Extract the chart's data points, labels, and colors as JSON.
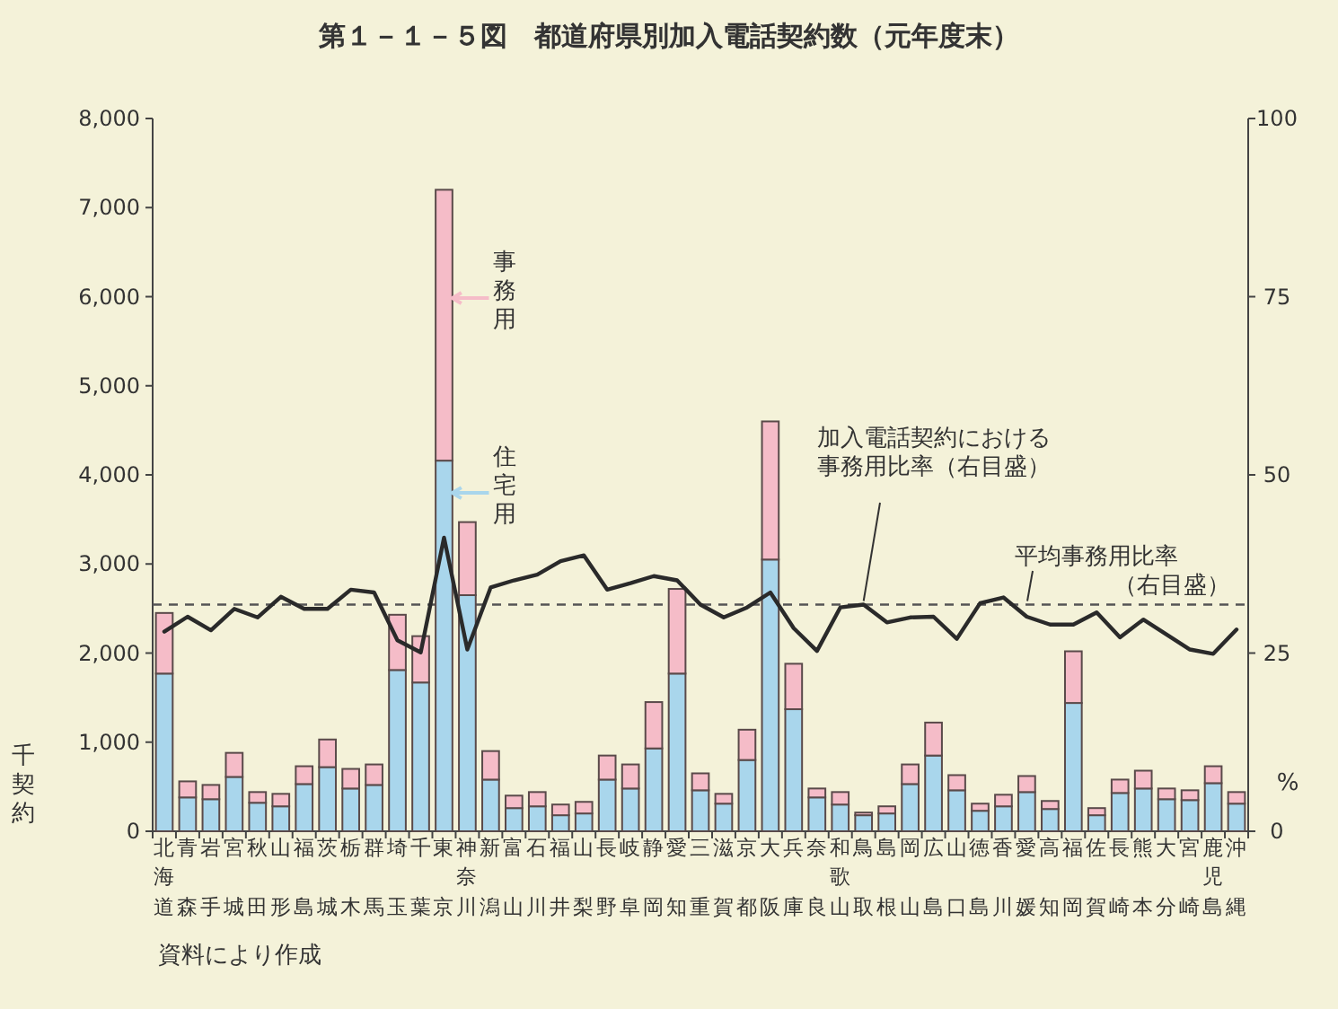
{
  "chart_data": {
    "type": "bar",
    "stacked": true,
    "title": "第１－１－５図　都道府県別加入電話契約数（元年度末）",
    "ylabel": "千契約",
    "y2label": "%",
    "categories": [
      "北海道",
      "青森",
      "岩手",
      "宮城",
      "秋田",
      "山形",
      "福島",
      "茨城",
      "栃木",
      "群馬",
      "埼玉",
      "千葉",
      "東京",
      "神奈川",
      "新潟",
      "富山",
      "石川",
      "福井",
      "山梨",
      "長野",
      "岐阜",
      "静岡",
      "愛知",
      "三重",
      "滋賀",
      "京都",
      "大阪",
      "兵庫",
      "奈良",
      "和歌山",
      "鳥取",
      "島根",
      "岡山",
      "広島",
      "山口",
      "徳島",
      "香川",
      "愛媛",
      "高知",
      "福岡",
      "佐賀",
      "長崎",
      "熊本",
      "大分",
      "宮崎",
      "鹿児島",
      "沖縄"
    ],
    "series": [
      {
        "name": "住宅用",
        "color": "#a9d6ec",
        "values": [
          1770,
          380,
          360,
          610,
          320,
          280,
          530,
          720,
          480,
          520,
          1810,
          1670,
          4160,
          2650,
          580,
          260,
          280,
          180,
          200,
          580,
          480,
          930,
          1770,
          460,
          310,
          800,
          3050,
          1370,
          380,
          300,
          180,
          200,
          530,
          850,
          460,
          230,
          280,
          440,
          250,
          1440,
          180,
          430,
          480,
          360,
          350,
          540,
          310
        ]
      },
      {
        "name": "事務用",
        "color": "#f5bcc8",
        "values": [
          680,
          180,
          160,
          270,
          120,
          140,
          200,
          310,
          220,
          230,
          620,
          520,
          3040,
          820,
          320,
          140,
          160,
          120,
          130,
          270,
          270,
          520,
          950,
          190,
          110,
          340,
          1550,
          510,
          100,
          140,
          30,
          80,
          220,
          370,
          170,
          80,
          130,
          180,
          90,
          580,
          80,
          150,
          200,
          120,
          110,
          190,
          130
        ]
      },
      {
        "name": "加入電話契約における事務用比率（右目盛）",
        "type": "line",
        "axis": "y2",
        "color": "#2a2a2a",
        "values": [
          28.0,
          30.1,
          28.2,
          31.2,
          30.0,
          32.9,
          31.2,
          31.2,
          33.9,
          33.5,
          26.8,
          25.1,
          41.2,
          25.5,
          34.2,
          35.2,
          36.0,
          37.9,
          38.7,
          33.9,
          34.8,
          35.8,
          35.2,
          31.8,
          30.0,
          31.4,
          33.5,
          28.5,
          25.3,
          31.4,
          31.8,
          29.3,
          30.0,
          30.1,
          27.0,
          32.0,
          32.8,
          30.1,
          29.0,
          29.0,
          30.7,
          27.2,
          29.7,
          27.6,
          25.5,
          24.9,
          28.3
        ]
      }
    ],
    "ylim": [
      0,
      8000
    ],
    "yticks": [
      0,
      {
        "value": 1000,
        "label": "1,000"
      },
      {
        "value": 2000,
        "label": "2,000"
      },
      {
        "value": 3000,
        "label": "3,000"
      },
      {
        "value": 4000,
        "label": "4,000"
      },
      {
        "value": 5000,
        "label": "5,000"
      },
      {
        "value": 6000,
        "label": "6,000"
      },
      {
        "value": 7000,
        "label": "7,000"
      },
      {
        "value": 8000,
        "label": "8,000"
      }
    ],
    "y2lim": [
      0,
      100
    ],
    "y2ticks": [
      0,
      25,
      50,
      75,
      100
    ],
    "ref_lines": [
      {
        "axis": "y2",
        "value": 31.8,
        "label": "平均事務用比率（右目盛）",
        "color": "#555555",
        "line_style": "dashed"
      }
    ],
    "marker": "none",
    "legend": "top",
    "annotations": [
      "資料により作成"
    ]
  }
}
